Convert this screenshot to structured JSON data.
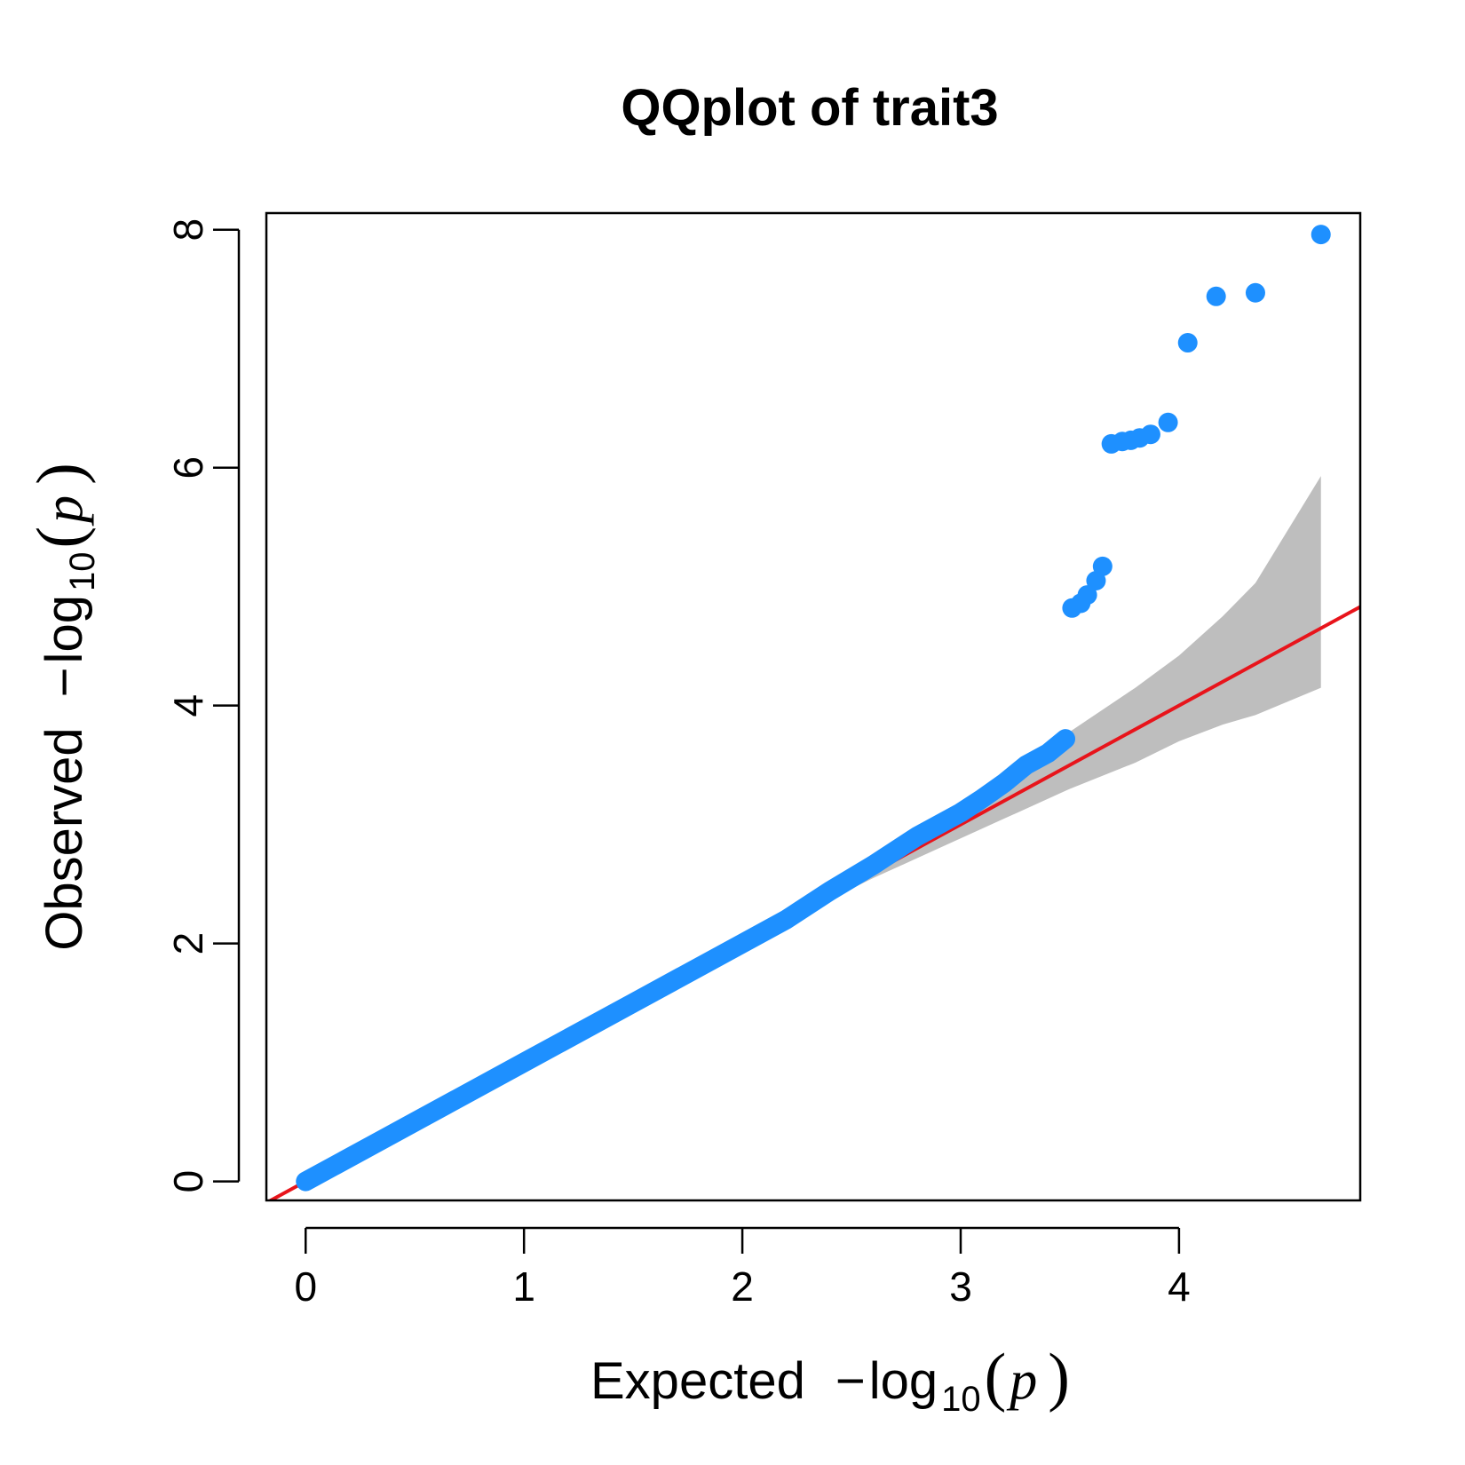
{
  "chart_data": {
    "type": "scatter",
    "title": "QQplot of trait3",
    "xlabel": {
      "prefix": "Expected",
      "minus": "−",
      "log": "log",
      "base": "10",
      "open": "(",
      "var": "p",
      "close": ")"
    },
    "ylabel": {
      "prefix": "Observed",
      "minus": "−",
      "log": "log",
      "base": "10",
      "open": "(",
      "var": "p",
      "close": ")"
    },
    "xlim": [
      -0.18,
      4.83
    ],
    "ylim": [
      -0.16,
      8.14
    ],
    "x_ticks": [
      0,
      1,
      2,
      3,
      4
    ],
    "y_ticks": [
      0,
      2,
      4,
      6,
      8
    ],
    "x_tick_labels": [
      "0",
      "1",
      "2",
      "3",
      "4"
    ],
    "y_tick_labels": [
      "0",
      "2",
      "4",
      "6",
      "8"
    ],
    "grid": false,
    "legend": "none",
    "reference_line": {
      "slope": 1,
      "intercept": 0,
      "color": "#e8141b"
    },
    "confidence_band": {
      "color": "#bebebe",
      "x": [
        2.3,
        2.6,
        2.9,
        3.2,
        3.5,
        3.8,
        4.0,
        4.2,
        4.35,
        4.65
      ],
      "upper": [
        2.32,
        2.66,
        3.02,
        3.4,
        3.78,
        4.15,
        4.42,
        4.75,
        5.03,
        5.93
      ],
      "lower": [
        2.28,
        2.55,
        2.8,
        3.05,
        3.3,
        3.52,
        3.7,
        3.84,
        3.92,
        4.15
      ]
    },
    "point_color": "#1e90ff",
    "main_curve": {
      "x": [
        0.0,
        0.5,
        1.0,
        1.5,
        2.0,
        2.2,
        2.4,
        2.6,
        2.8,
        3.0,
        3.1,
        3.2,
        3.3,
        3.4,
        3.48
      ],
      "y": [
        0.0,
        0.5,
        1.0,
        1.5,
        2.0,
        2.2,
        2.44,
        2.66,
        2.9,
        3.1,
        3.22,
        3.35,
        3.5,
        3.6,
        3.72
      ]
    },
    "outliers": {
      "x": [
        3.51,
        3.55,
        3.58,
        3.62,
        3.65,
        3.69,
        3.74,
        3.78,
        3.82,
        3.87,
        3.95,
        4.04,
        4.17,
        4.35,
        4.65
      ],
      "y": [
        4.82,
        4.86,
        4.93,
        5.05,
        5.17,
        6.2,
        6.22,
        6.23,
        6.25,
        6.28,
        6.38,
        7.05,
        7.44,
        7.47,
        7.96
      ]
    }
  }
}
